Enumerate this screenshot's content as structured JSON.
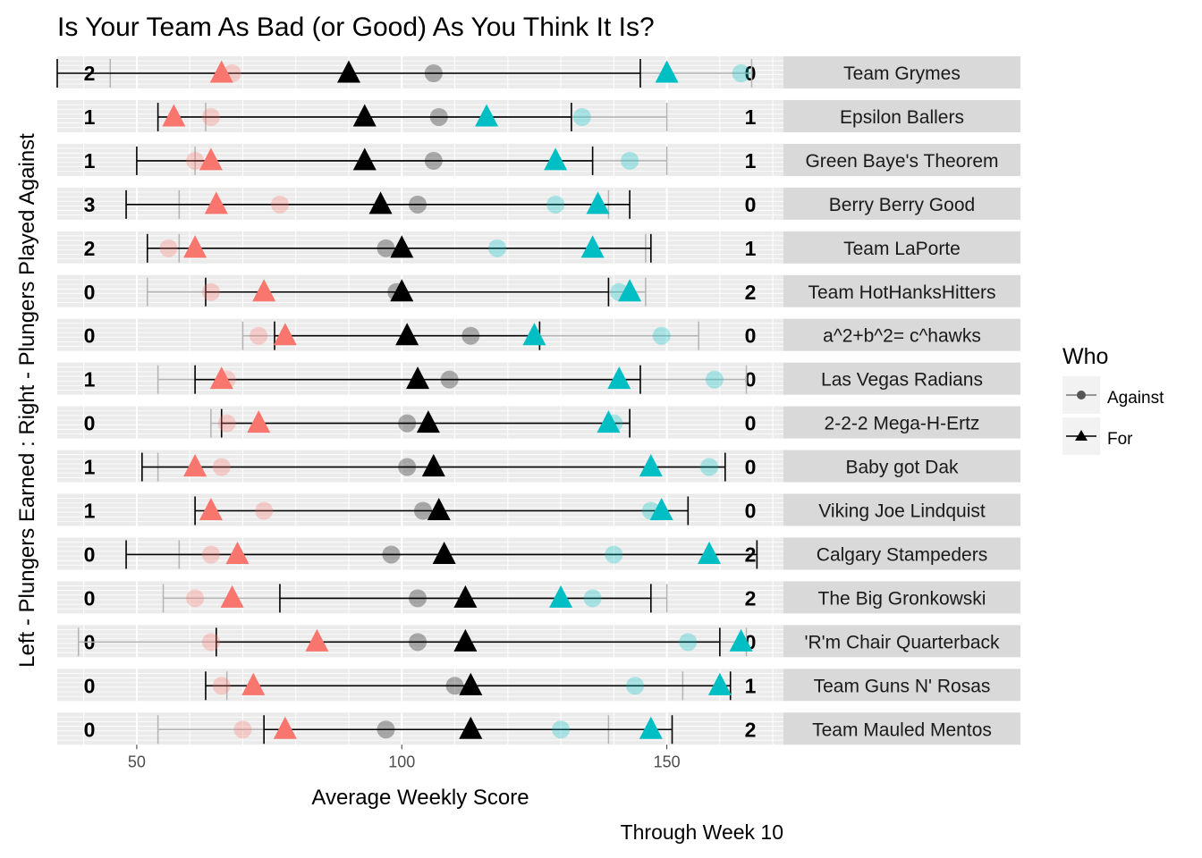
{
  "chart_data": {
    "type": "scatter",
    "title": "Is Your Team As Bad (or Good) As You Think It Is?",
    "xlabel": "Average Weekly Score",
    "ylabel": "Left - Plungers Earned : Right - Plungers Played Against",
    "caption": "Through Week 10",
    "xlim": [
      35,
      172
    ],
    "x_ticks": [
      50,
      100,
      150
    ],
    "legend": {
      "title": "Who",
      "placement": "right",
      "entries": [
        {
          "name": "Against",
          "shape": "circle"
        },
        {
          "name": "For",
          "shape": "triangle"
        }
      ]
    },
    "colors": {
      "min": "#F8766D",
      "max": "#00BFC4",
      "mean": "#000000",
      "range_line": "#000000"
    },
    "series_fields": {
      "for": [
        "for_min",
        "for_mean",
        "for_max",
        "for_range"
      ],
      "against": [
        "against_min",
        "against_mean",
        "against_max",
        "against_range"
      ]
    },
    "teams": [
      {
        "name": "Team Grymes",
        "plungers_earned": "2",
        "plungers_against": "0",
        "for_min": 66,
        "for_mean": 90,
        "for_max": 150,
        "for_range": [
          35,
          145
        ],
        "against_min": 68,
        "against_mean": 106,
        "against_max": 164,
        "against_range": [
          45,
          166
        ]
      },
      {
        "name": "Epsilon Ballers",
        "plungers_earned": "1",
        "plungers_against": "1",
        "for_min": 57,
        "for_mean": 93,
        "for_max": 116,
        "for_range": [
          54,
          132
        ],
        "against_min": 64,
        "against_mean": 107,
        "against_max": 134,
        "against_range": [
          63,
          150
        ]
      },
      {
        "name": "Green Baye's Theorem",
        "plungers_earned": "1",
        "plungers_against": "1",
        "for_min": 64,
        "for_mean": 93,
        "for_max": 129,
        "for_range": [
          50,
          136
        ],
        "against_min": 61,
        "against_mean": 106,
        "against_max": 143,
        "against_range": [
          61,
          150
        ]
      },
      {
        "name": "Berry Berry Good",
        "plungers_earned": "3",
        "plungers_against": "0",
        "for_min": 65,
        "for_mean": 96,
        "for_max": 137,
        "for_range": [
          48,
          143
        ],
        "against_min": 77,
        "against_mean": 103,
        "against_max": 129,
        "against_range": [
          58,
          139
        ]
      },
      {
        "name": "Team LaPorte",
        "plungers_earned": "2",
        "plungers_against": "1",
        "for_min": 61,
        "for_mean": 100,
        "for_max": 136,
        "for_range": [
          52,
          147
        ],
        "against_min": 56,
        "against_mean": 97,
        "against_max": 118,
        "against_range": [
          58,
          146
        ]
      },
      {
        "name": "Team HotHanksHitters",
        "plungers_earned": "0",
        "plungers_against": "2",
        "for_min": 74,
        "for_mean": 100,
        "for_max": 143,
        "for_range": [
          63,
          139
        ],
        "against_min": 64,
        "against_mean": 99,
        "against_max": 141,
        "against_range": [
          52,
          146
        ]
      },
      {
        "name": "a^2+b^2= c^hawks",
        "plungers_earned": "0",
        "plungers_against": "0",
        "for_min": 78,
        "for_mean": 101,
        "for_max": 125,
        "for_range": [
          76,
          126
        ],
        "against_min": 73,
        "against_mean": 113,
        "against_max": 149,
        "against_range": [
          70,
          156
        ]
      },
      {
        "name": "Las Vegas Radians",
        "plungers_earned": "1",
        "plungers_against": "0",
        "for_min": 66,
        "for_mean": 103,
        "for_max": 141,
        "for_range": [
          61,
          145
        ],
        "against_min": 67,
        "against_mean": 109,
        "against_max": 159,
        "against_range": [
          54,
          165
        ]
      },
      {
        "name": "2-2-2 Mega-H-Ertz",
        "plungers_earned": "0",
        "plungers_against": "0",
        "for_min": 73,
        "for_mean": 105,
        "for_max": 139,
        "for_range": [
          66,
          143
        ],
        "against_min": 67,
        "against_mean": 101,
        "against_max": 140,
        "against_range": [
          64,
          143
        ]
      },
      {
        "name": "Baby got Dak",
        "plungers_earned": "1",
        "plungers_against": "0",
        "for_min": 61,
        "for_mean": 106,
        "for_max": 147,
        "for_range": [
          51,
          161
        ],
        "against_min": 66,
        "against_mean": 101,
        "against_max": 158,
        "against_range": [
          54,
          161
        ]
      },
      {
        "name": "Viking Joe Lindquist",
        "plungers_earned": "1",
        "plungers_against": "0",
        "for_min": 64,
        "for_mean": 107,
        "for_max": 149,
        "for_range": [
          61,
          154
        ],
        "against_min": 74,
        "against_mean": 104,
        "against_max": 147,
        "against_range": [
          61,
          154
        ]
      },
      {
        "name": "Calgary Stampeders",
        "plungers_earned": "0",
        "plungers_against": "2",
        "for_min": 69,
        "for_mean": 108,
        "for_max": 158,
        "for_range": [
          48,
          167
        ],
        "against_min": 64,
        "against_mean": 98,
        "against_max": 140,
        "against_range": [
          58,
          167
        ]
      },
      {
        "name": "The Big Gronkowski",
        "plungers_earned": "0",
        "plungers_against": "2",
        "for_min": 68,
        "for_mean": 112,
        "for_max": 130,
        "for_range": [
          77,
          147
        ],
        "against_min": 61,
        "against_mean": 103,
        "against_max": 136,
        "against_range": [
          55,
          150
        ]
      },
      {
        "name": "'R'm Chair Quarterback",
        "plungers_earned": "0",
        "plungers_against": "0",
        "for_min": 84,
        "for_mean": 112,
        "for_max": 164,
        "for_range": [
          65,
          160
        ],
        "against_min": 64,
        "against_mean": 103,
        "against_max": 154,
        "against_range": [
          39,
          165
        ]
      },
      {
        "name": "Team Guns N' Rosas",
        "plungers_earned": "0",
        "plungers_against": "1",
        "for_min": 72,
        "for_mean": 113,
        "for_max": 160,
        "for_range": [
          63,
          162
        ],
        "against_min": 66,
        "against_mean": 110,
        "against_max": 144,
        "against_range": [
          67,
          153
        ]
      },
      {
        "name": "Team Mauled Mentos",
        "plungers_earned": "0",
        "plungers_against": "2",
        "for_min": 78,
        "for_mean": 113,
        "for_max": 147,
        "for_range": [
          74,
          151
        ],
        "against_min": 70,
        "against_mean": 97,
        "against_max": 130,
        "against_range": [
          54,
          139
        ]
      }
    ]
  }
}
